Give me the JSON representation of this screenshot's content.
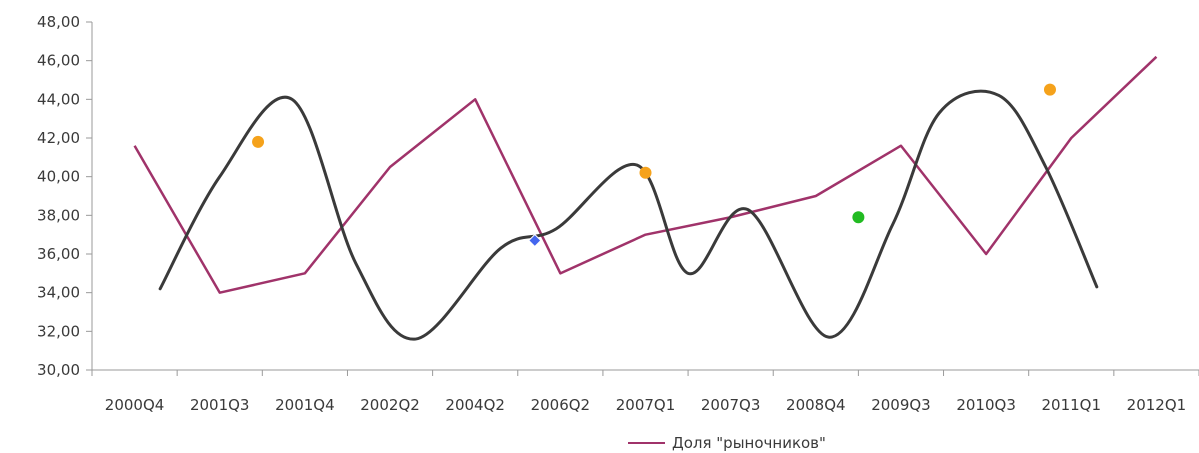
{
  "chart_data": {
    "type": "line",
    "ylim": [
      30,
      48
    ],
    "yticks": [
      "30,00",
      "32,00",
      "34,00",
      "36,00",
      "38,00",
      "40,00",
      "42,00",
      "44,00",
      "46,00",
      "48,00"
    ],
    "categories": [
      "2000Q4",
      "2001Q3",
      "2001Q4",
      "2002Q2",
      "2004Q2",
      "2006Q2",
      "2007Q1",
      "2007Q3",
      "2008Q4",
      "2009Q3",
      "2010Q3",
      "2011Q1",
      "2012Q1"
    ],
    "series": [
      {
        "name": "Доля \"рыночников\"",
        "color": "#a0336a",
        "values": [
          41.6,
          34.0,
          35.0,
          40.5,
          44.0,
          35.0,
          37.0,
          37.9,
          39.0,
          41.6,
          36.0,
          42.0,
          46.2
        ]
      },
      {
        "color": "#3a3a3a",
        "smooth": true,
        "x": [
          0.3,
          1.0,
          1.85,
          2.6,
          3.3,
          4.3,
          4.95,
          5.9,
          6.5,
          7.2,
          8.15,
          8.9,
          9.45,
          10.15,
          10.7,
          11.3
        ],
        "values": [
          34.2,
          40.0,
          44.0,
          35.5,
          31.6,
          36.3,
          37.3,
          40.6,
          35.0,
          38.3,
          31.7,
          37.5,
          43.3,
          44.2,
          40.5,
          34.3
        ]
      }
    ],
    "markers": [
      {
        "x": 1.45,
        "y": 41.8,
        "color": "#f5a21b",
        "shape": "circle"
      },
      {
        "x": 4.7,
        "y": 36.7,
        "color": "#4466ee",
        "shape": "diamond"
      },
      {
        "x": 6.0,
        "y": 40.2,
        "color": "#f5a21b",
        "shape": "circle"
      },
      {
        "x": 8.5,
        "y": 37.9,
        "color": "#22bb22",
        "shape": "circle"
      },
      {
        "x": 10.75,
        "y": 44.5,
        "color": "#f5a21b",
        "shape": "circle"
      }
    ],
    "legend": {
      "position": "bottom",
      "label": "Доля \"рыночников\""
    },
    "grid": false
  }
}
